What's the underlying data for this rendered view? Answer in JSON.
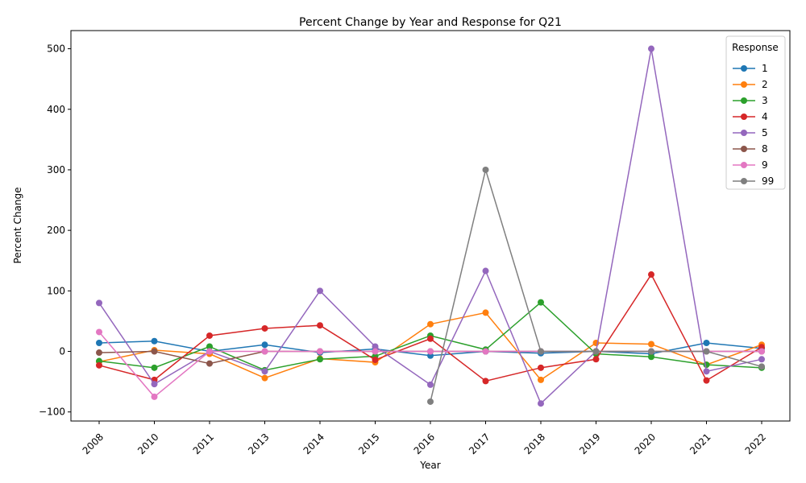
{
  "chart_data": {
    "type": "line",
    "title": "Percent Change by Year and Response for Q21",
    "xlabel": "Year",
    "ylabel": "Percent Change",
    "categories": [
      "2008",
      "2010",
      "2011",
      "2013",
      "2014",
      "2015",
      "2016",
      "2017",
      "2018",
      "2019",
      "2020",
      "2021",
      "2022"
    ],
    "ylim": [
      -115,
      530
    ],
    "yticks": [
      -100,
      0,
      100,
      200,
      300,
      400,
      500
    ],
    "grid": false,
    "legend": {
      "title": "Response",
      "position": "top-right"
    },
    "series": [
      {
        "name": "1",
        "color": "#1f77b4",
        "values": [
          14,
          17,
          0,
          11,
          -2,
          4,
          -7,
          0,
          -3,
          0,
          -4,
          14,
          5
        ]
      },
      {
        "name": "2",
        "color": "#ff7f0e",
        "values": [
          -17,
          2,
          -4,
          -44,
          -12,
          -18,
          45,
          64,
          -47,
          14,
          12,
          -22,
          11
        ]
      },
      {
        "name": "3",
        "color": "#2ca02c",
        "values": [
          -16,
          -27,
          8,
          -31,
          -13,
          -8,
          26,
          3,
          81,
          -4,
          -9,
          -22,
          -27
        ]
      },
      {
        "name": "4",
        "color": "#d62728",
        "values": [
          -23,
          -47,
          26,
          38,
          43,
          -14,
          21,
          -49,
          -27,
          -13,
          127,
          -48,
          7
        ]
      },
      {
        "name": "5",
        "color": "#9467bd",
        "values": [
          80,
          -54,
          0,
          -33,
          100,
          8,
          -55,
          133,
          -86,
          0,
          500,
          -33,
          -13
        ]
      },
      {
        "name": "8",
        "color": "#8c564b",
        "values": [
          -2,
          0,
          -20,
          0,
          0,
          0,
          0,
          0,
          0,
          0,
          0,
          0,
          0
        ]
      },
      {
        "name": "9",
        "color": "#e377c2",
        "values": [
          32,
          -75,
          0,
          0,
          0,
          0,
          0,
          0,
          0,
          0,
          0,
          0,
          0
        ]
      },
      {
        "name": "99",
        "color": "#7f7f7f",
        "values": [
          null,
          null,
          null,
          null,
          null,
          null,
          -83,
          300,
          0,
          0,
          0,
          0,
          -25
        ]
      }
    ]
  }
}
